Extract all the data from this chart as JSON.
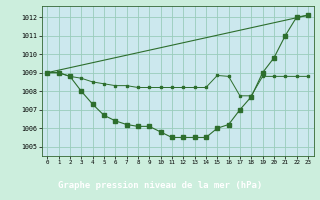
{
  "background_color": "#cceedd",
  "plot_bg_color": "#cce8ee",
  "grid_color": "#99ccbb",
  "line_color": "#2d6e2d",
  "title": "Graphe pression niveau de la mer (hPa)",
  "title_bg": "#336633",
  "title_fg": "#ffffff",
  "xlim": [
    -0.5,
    23.5
  ],
  "ylim": [
    1004.5,
    1012.6
  ],
  "yticks": [
    1005,
    1006,
    1007,
    1008,
    1009,
    1010,
    1011,
    1012
  ],
  "xticks": [
    0,
    1,
    2,
    3,
    4,
    5,
    6,
    7,
    8,
    9,
    10,
    11,
    12,
    13,
    14,
    15,
    16,
    17,
    18,
    19,
    20,
    21,
    22,
    23
  ],
  "line1_x": [
    0,
    1,
    2,
    3,
    4,
    5,
    6,
    7,
    8,
    9,
    10,
    11,
    12,
    13,
    14,
    15,
    16,
    17,
    18,
    19,
    20,
    21,
    22,
    23
  ],
  "line1_y": [
    1009.0,
    1009.0,
    1008.8,
    1008.0,
    1007.3,
    1006.7,
    1006.4,
    1006.2,
    1006.1,
    1006.1,
    1005.8,
    1005.5,
    1005.5,
    1005.5,
    1005.5,
    1006.0,
    1006.2,
    1007.0,
    1007.7,
    1009.0,
    1009.8,
    1011.0,
    1012.0,
    1012.1
  ],
  "line2_x": [
    0,
    1,
    2,
    3,
    4,
    5,
    6,
    7,
    8,
    9,
    10,
    11,
    12,
    13,
    14,
    15,
    16,
    17,
    18,
    19,
    20,
    21,
    22,
    23
  ],
  "line2_y": [
    1009.0,
    1009.0,
    1008.8,
    1008.7,
    1008.5,
    1008.4,
    1008.3,
    1008.3,
    1008.2,
    1008.2,
    1008.2,
    1008.2,
    1008.2,
    1008.2,
    1008.2,
    1008.85,
    1008.8,
    1007.75,
    1007.75,
    1008.8,
    1008.8,
    1008.8,
    1008.8,
    1008.8
  ],
  "line3_x": [
    0,
    23
  ],
  "line3_y": [
    1009.0,
    1012.1
  ]
}
